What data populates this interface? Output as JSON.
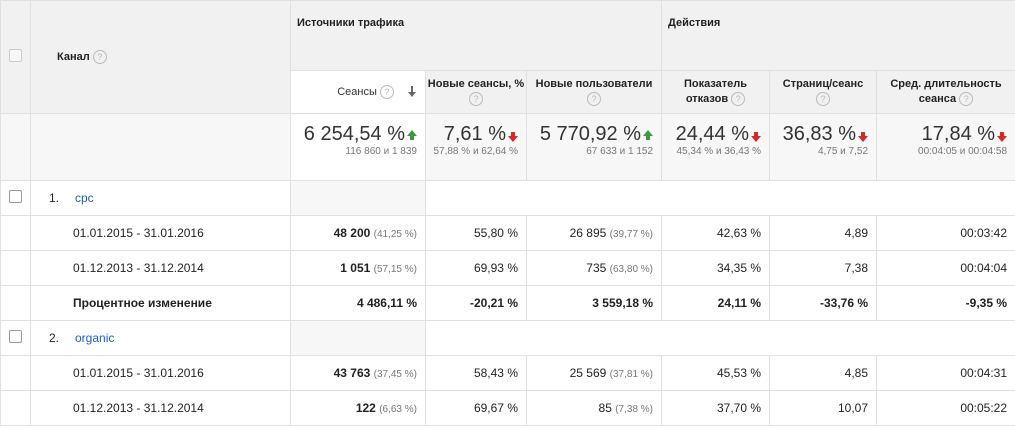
{
  "header": {
    "channel_label": "Канал",
    "group_traffic": "Источники трафика",
    "group_actions": "Действия",
    "help_glyph": "?",
    "metrics": [
      "Сеансы",
      "Новые сеансы, %",
      "Новые пользователи",
      "Показатель отказов",
      "Страниц/сеанс",
      "Сред. длительность сеанса"
    ]
  },
  "totals": [
    {
      "main": "6 254,54 %",
      "dir": "up",
      "sub": "116 860 и 1 839"
    },
    {
      "main": "7,61 %",
      "dir": "down",
      "sub": "57,88 % и 62,64 %"
    },
    {
      "main": "5 770,92 %",
      "dir": "up",
      "sub": "67 633 и 1 152"
    },
    {
      "main": "24,44 %",
      "dir": "down",
      "sub": "45,34 % и 36,43 %"
    },
    {
      "main": "36,83 %",
      "dir": "down",
      "sub": "4,75 и 7,52"
    },
    {
      "main": "17,84 %",
      "dir": "down",
      "sub": "00:04:05 и 00:04:58"
    }
  ],
  "rows": [
    {
      "kind": "channel",
      "index": "1.",
      "name": "cpc"
    },
    {
      "kind": "period",
      "name": "01.01.2015 - 31.01.2016",
      "sessions": "48 200",
      "sessions_pct": "(41,25 %)",
      "new_sessions": "55,80 %",
      "new_users": "26 895",
      "new_users_pct": "(39,77 %)",
      "bounce": "42,63 %",
      "pages": "4,89",
      "duration": "00:03:42"
    },
    {
      "kind": "period",
      "name": "01.12.2013 - 31.12.2014",
      "sessions": "1 051",
      "sessions_pct": "(57,15 %)",
      "new_sessions": "69,93 %",
      "new_users": "735",
      "new_users_pct": "(63,80 %)",
      "bounce": "34,35 %",
      "pages": "7,38",
      "duration": "00:04:04"
    },
    {
      "kind": "change",
      "name": "Процентное изменение",
      "sessions": "4 486,11 %",
      "new_sessions": "-20,21 %",
      "new_users": "3 559,18 %",
      "bounce": "24,11 %",
      "pages": "-33,76 %",
      "duration": "-9,35 %"
    },
    {
      "kind": "channel",
      "index": "2.",
      "name": "organic"
    },
    {
      "kind": "period",
      "name": "01.01.2015 - 31.01.2016",
      "sessions": "43 763",
      "sessions_pct": "(37,45 %)",
      "new_sessions": "58,43 %",
      "new_users": "25 569",
      "new_users_pct": "(37,81 %)",
      "bounce": "45,53 %",
      "pages": "4,85",
      "duration": "00:04:31"
    },
    {
      "kind": "period",
      "name": "01.12.2013 - 31.12.2014",
      "sessions": "122",
      "sessions_pct": "(6,63 %)",
      "new_sessions": "69,67 %",
      "new_users": "85",
      "new_users_pct": "(7,38 %)",
      "bounce": "37,70 %",
      "pages": "10,07",
      "duration": "00:05:22"
    }
  ]
}
